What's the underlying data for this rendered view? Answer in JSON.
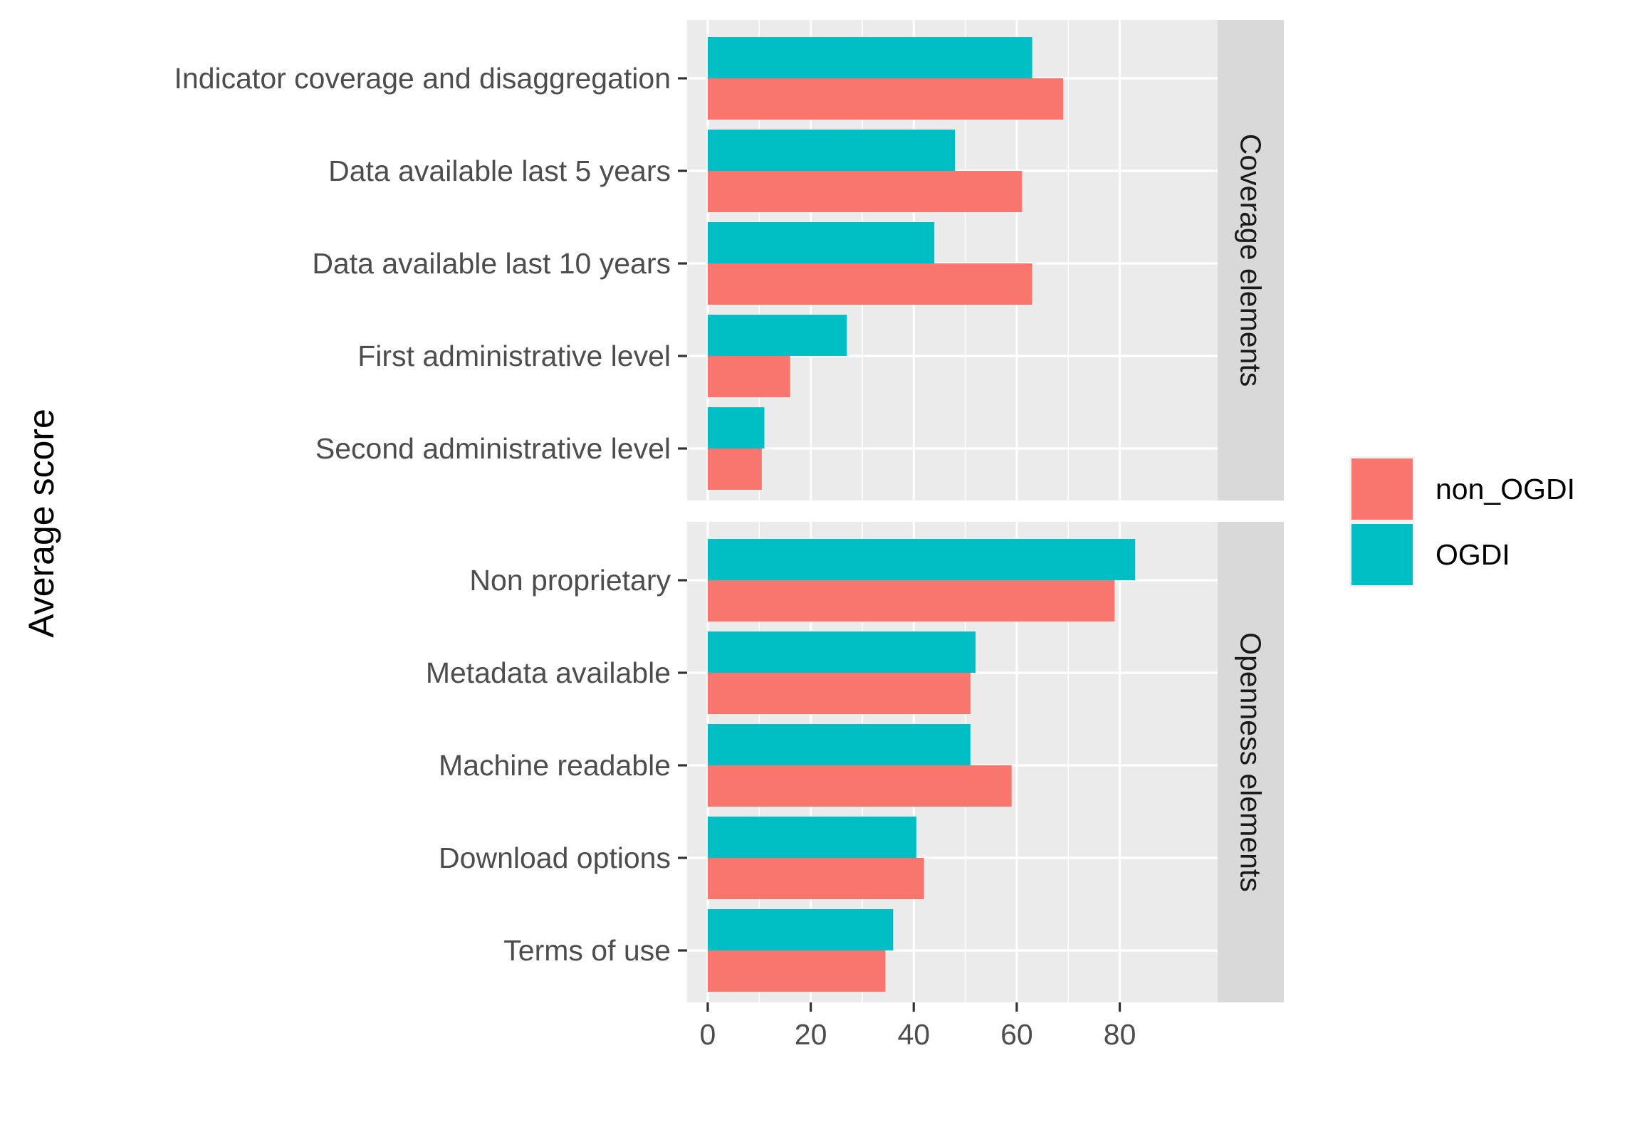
{
  "chart_data": {
    "type": "bar",
    "orientation": "horizontal",
    "ylabel": "Average score",
    "xlabel": "",
    "xlim": [
      -4,
      99
    ],
    "x_ticks": [
      0,
      20,
      40,
      60,
      80
    ],
    "grid": true,
    "legend": {
      "placement": "right",
      "entries": [
        {
          "name": "non_OGDI",
          "color": "#F8766D"
        },
        {
          "name": "OGDI",
          "color": "#00BFC4"
        }
      ]
    },
    "facets": [
      {
        "label": "Coverage elements",
        "categories": [
          "Indicator coverage and disaggregation",
          "Data available last 5 years",
          "Data available last 10 years",
          "First administrative level",
          "Second administrative level"
        ],
        "series": [
          {
            "name": "OGDI",
            "values": [
              63,
              48,
              44,
              27,
              11
            ]
          },
          {
            "name": "non_OGDI",
            "values": [
              69,
              61,
              63,
              16,
              10.5
            ]
          }
        ]
      },
      {
        "label": "Openness elements",
        "categories": [
          "Non proprietary",
          "Metadata available",
          "Machine readable",
          "Download options",
          "Terms of use"
        ],
        "series": [
          {
            "name": "OGDI",
            "values": [
              83,
              52,
              51,
              40.5,
              36
            ]
          },
          {
            "name": "non_OGDI",
            "values": [
              79,
              51,
              59,
              42,
              34.5
            ]
          }
        ]
      }
    ]
  }
}
